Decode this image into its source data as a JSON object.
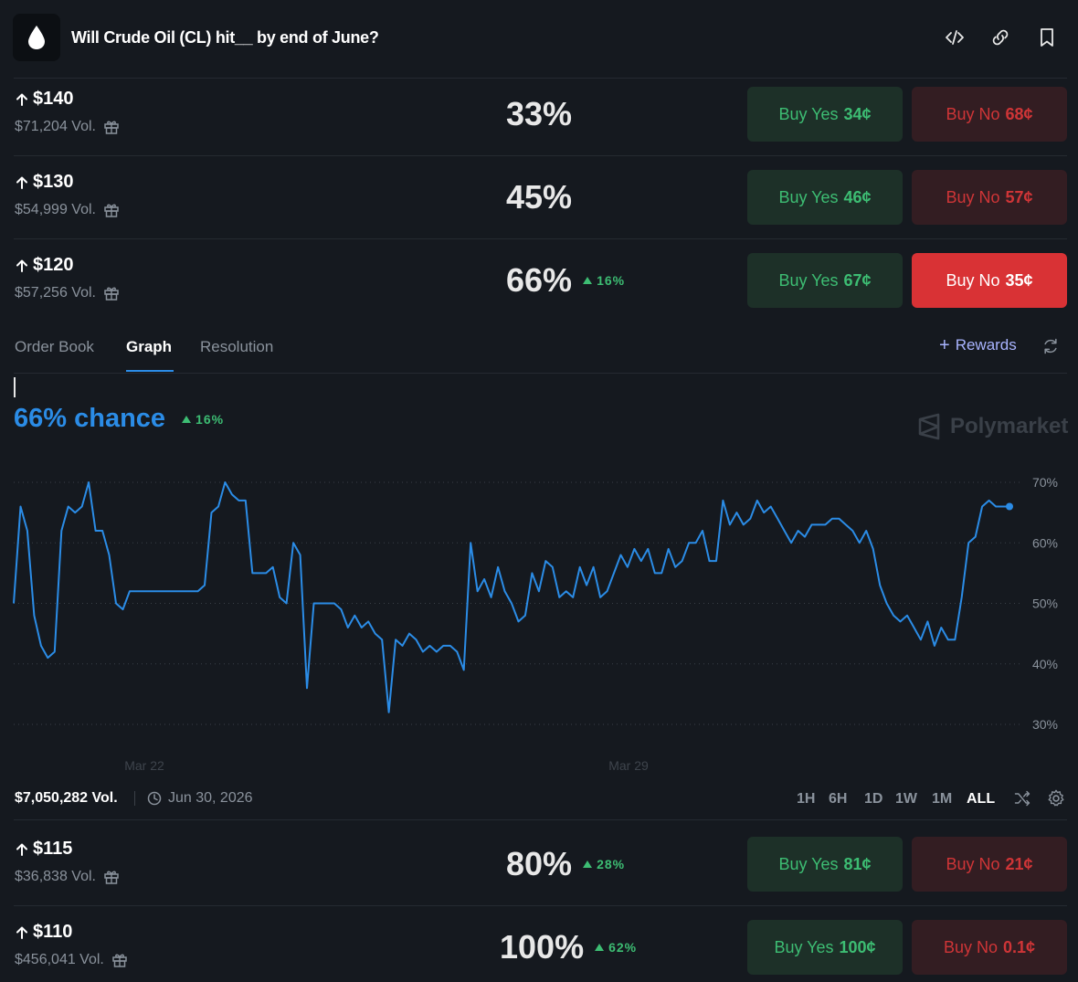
{
  "header": {
    "title": "Will Crude Oil (CL) hit__ by end of June?"
  },
  "markets_top": [
    {
      "price": "$140",
      "volume": "$71,204 Vol.",
      "chance": "33%",
      "change": "",
      "yes_label": "Buy Yes",
      "yes_price": "34¢",
      "no_label": "Buy No",
      "no_price": "68¢",
      "no_active": false
    },
    {
      "price": "$130",
      "volume": "$54,999 Vol.",
      "chance": "45%",
      "change": "",
      "yes_label": "Buy Yes",
      "yes_price": "46¢",
      "no_label": "Buy No",
      "no_price": "57¢",
      "no_active": false
    },
    {
      "price": "$120",
      "volume": "$57,256 Vol.",
      "chance": "66%",
      "change": "16%",
      "yes_label": "Buy Yes",
      "yes_price": "67¢",
      "no_label": "Buy No",
      "no_price": "35¢",
      "no_active": true
    }
  ],
  "tabs": [
    {
      "label": "Order Book",
      "active": false
    },
    {
      "label": "Graph",
      "active": true
    },
    {
      "label": "Resolution",
      "active": false
    }
  ],
  "rewards_label": "Rewards",
  "graph": {
    "chance_text": "66% chance",
    "change": "16%",
    "watermark": "Polymarket"
  },
  "chart_data": {
    "type": "line",
    "x_ticks": [
      "Mar 22",
      "Mar 29"
    ],
    "y_ticks": [
      "70%",
      "60%",
      "50%",
      "40%",
      "30%"
    ],
    "ylim": [
      30,
      70
    ],
    "grid": true,
    "series": [
      {
        "values": [
          50,
          66,
          62,
          48,
          43,
          41,
          42,
          62,
          66,
          65,
          66,
          70,
          62,
          62,
          58,
          50,
          49,
          52,
          52,
          52,
          52,
          52,
          52,
          52,
          52,
          52,
          52,
          52,
          53,
          65,
          66,
          70,
          68,
          67,
          67,
          55,
          55,
          55,
          56,
          51,
          50,
          60,
          58,
          36,
          50,
          50,
          50,
          50,
          49,
          46,
          48,
          46,
          47,
          45,
          44,
          32,
          44,
          43,
          45,
          44,
          42,
          43,
          42,
          43,
          43,
          42,
          39,
          60,
          52,
          54,
          51,
          56,
          52,
          50,
          47,
          48,
          55,
          52,
          57,
          56,
          51,
          52,
          51,
          56,
          53,
          56,
          51,
          52,
          55,
          58,
          56,
          59,
          57,
          59,
          55,
          55,
          59,
          56,
          57,
          60,
          60,
          62,
          57,
          57,
          67,
          63,
          65,
          63,
          64,
          67,
          65,
          66,
          64,
          62,
          60,
          62,
          61,
          63,
          63,
          63,
          64,
          64,
          63,
          62,
          60,
          62,
          59,
          53,
          50,
          48,
          47,
          48,
          46,
          44,
          47,
          43,
          46,
          44,
          44,
          51,
          60,
          61,
          66,
          67,
          66,
          66,
          66
        ]
      }
    ]
  },
  "stats": {
    "volume": "$7,050,282 Vol.",
    "end_date": "Jun 30, 2026",
    "ranges": [
      {
        "label": "1H",
        "active": false
      },
      {
        "label": "6H",
        "active": false
      },
      {
        "label": "1D",
        "active": false
      },
      {
        "label": "1W",
        "active": false
      },
      {
        "label": "1M",
        "active": false
      },
      {
        "label": "ALL",
        "active": true
      }
    ]
  },
  "markets_bottom": [
    {
      "price": "$115",
      "volume": "$36,838 Vol.",
      "chance": "80%",
      "change": "28%",
      "yes_label": "Buy Yes",
      "yes_price": "81¢",
      "no_label": "Buy No",
      "no_price": "21¢",
      "no_active": false
    },
    {
      "price": "$110",
      "volume": "$456,041 Vol.",
      "chance": "100%",
      "change": "62%",
      "yes_label": "Buy Yes",
      "yes_price": "100¢",
      "no_label": "Buy No",
      "no_price": "0.1¢",
      "no_active": false
    }
  ],
  "colors": {
    "accent": "#2b8ce6",
    "yes": "#3dbd73",
    "no": "#cf3537",
    "background": "#15191f"
  }
}
